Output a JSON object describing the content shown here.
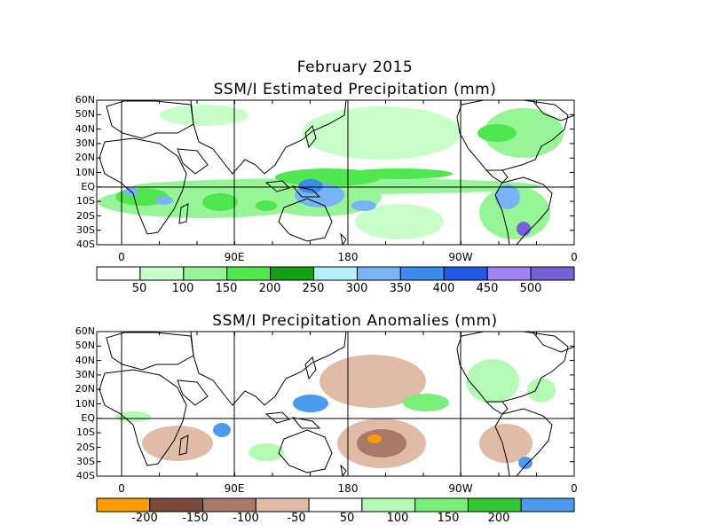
{
  "header": {
    "title_line1": "February 2015",
    "title_line2": "SSM/I Estimated Precipitation (mm)"
  },
  "panel2": {
    "title": "SSM/I Precipitation Anomalies (mm)"
  },
  "axes": {
    "lat_labels": [
      "60N",
      "50N",
      "40N",
      "30N",
      "20N",
      "10N",
      "EQ",
      "10S",
      "20S",
      "30S",
      "40S"
    ],
    "lon_labels": [
      "0",
      "90E",
      "180",
      "90W",
      "0"
    ]
  },
  "colorbar1": {
    "labels": [
      "50",
      "100",
      "150",
      "200",
      "250",
      "300",
      "350",
      "400",
      "450",
      "500"
    ],
    "colors": [
      "#ffffff",
      "#c8ffc8",
      "#96f596",
      "#50e650",
      "#14a014",
      "#b4f0fa",
      "#78b4f5",
      "#3c8cf0",
      "#1e5ae6",
      "#a082f5",
      "#7860dc"
    ]
  },
  "colorbar2": {
    "labels": [
      "-200",
      "-150",
      "-100",
      "-50",
      "50",
      "100",
      "150",
      "200"
    ],
    "colors": [
      "#ff9a00",
      "#7a4a3a",
      "#a87868",
      "#e0bca8",
      "#ffffff",
      "#b4fab4",
      "#78f078",
      "#32c832",
      "#4a9af0"
    ]
  },
  "map_elements": {
    "precip_colors": [
      "#c8ffc8",
      "#96f596",
      "#50e650",
      "#14a014",
      "#78b4f5",
      "#3c8cf0",
      "#7860dc"
    ],
    "anomaly_colors": [
      "#e0bca8",
      "#a87868",
      "#7a4a3a",
      "#ff9a00",
      "#b4fab4",
      "#78f078",
      "#32c832",
      "#4a9af0"
    ]
  }
}
